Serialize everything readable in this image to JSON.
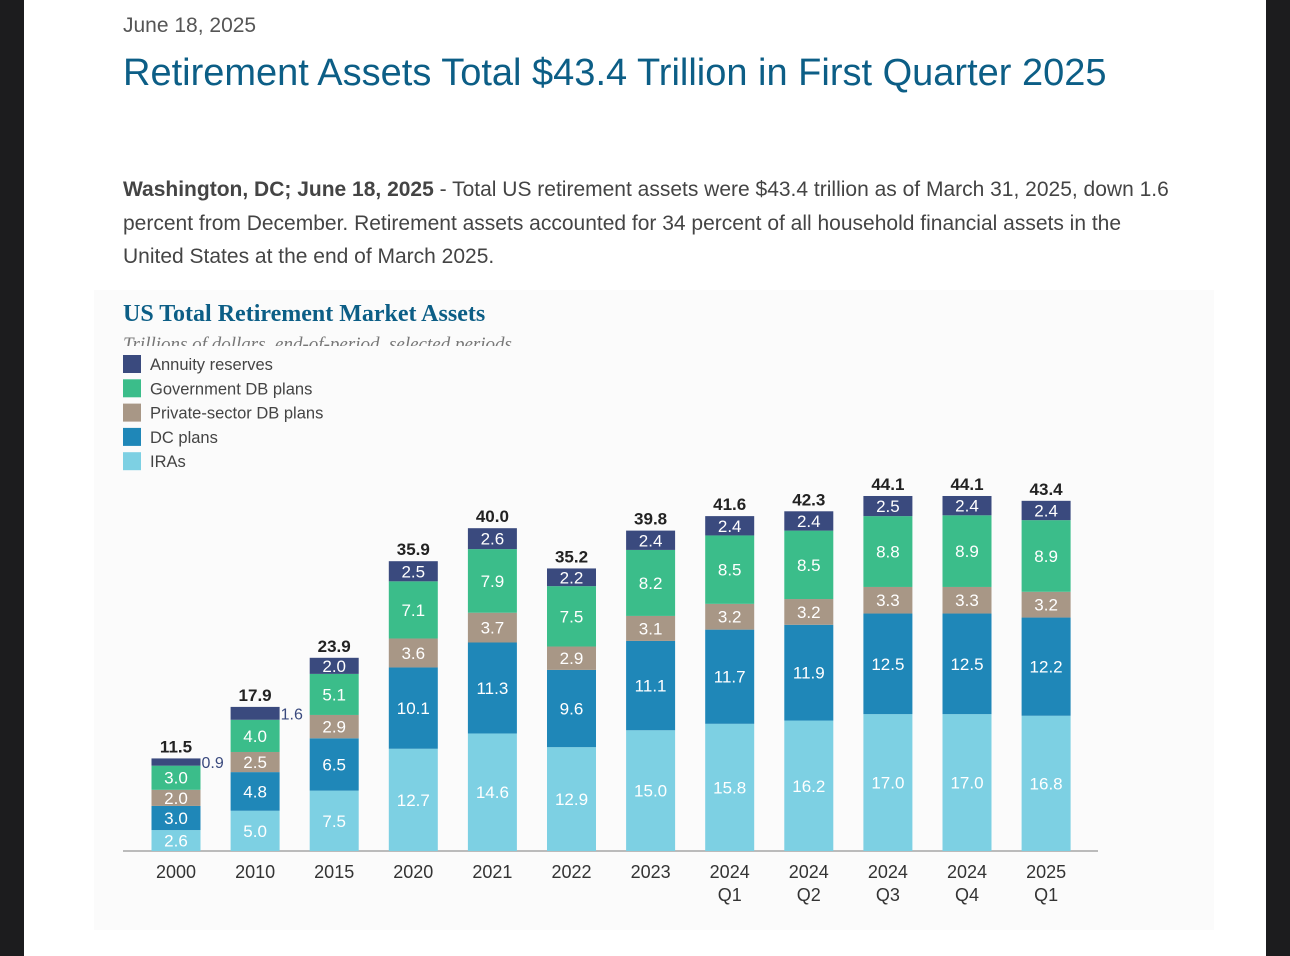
{
  "article": {
    "date": "June 18, 2025",
    "headline": "Retirement Assets Total $43.4 Trillion in First Quarter 2025",
    "dateline": "Washington, DC; June 18, 2025",
    "body": " - Total US retirement assets were $43.4 trillion as of March 31, 2025, down 1.6 percent from December. Retirement assets accounted for 34 percent of all household financial assets in the United States at the end of March 2025."
  },
  "chart_data": {
    "type": "bar",
    "stacked": true,
    "title": "US Total Retirement Market Assets",
    "subtitle": "Trillions of dollars, end-of-period, selected periods",
    "xlabel": "",
    "ylabel": "",
    "ylim": [
      0,
      45
    ],
    "grid": false,
    "legend_position": "top-left",
    "categories": [
      "2000",
      "2010",
      "2015",
      "2020",
      "2021",
      "2022",
      "2023",
      "2024 Q1",
      "2024 Q2",
      "2024 Q3",
      "2024 Q4",
      "2025 Q1"
    ],
    "totals": [
      "11.5",
      "17.9",
      "23.9",
      "35.9",
      "40.0",
      "35.2",
      "39.8",
      "41.6",
      "42.3",
      "44.1",
      "44.1",
      "43.4"
    ],
    "series": [
      {
        "name": "IRAs",
        "color": "#7dd0e3",
        "values": [
          2.6,
          5.0,
          7.5,
          12.7,
          14.6,
          12.9,
          15.0,
          15.8,
          16.2,
          17.0,
          17.0,
          16.8
        ],
        "labels": [
          "2.6",
          "5.0",
          "7.5",
          "12.7",
          "14.6",
          "12.9",
          "15.0",
          "15.8",
          "16.2",
          "17.0",
          "17.0",
          "16.8"
        ]
      },
      {
        "name": "DC plans",
        "color": "#1f87b8",
        "values": [
          3.0,
          4.8,
          6.5,
          10.1,
          11.3,
          9.6,
          11.1,
          11.7,
          11.9,
          12.5,
          12.5,
          12.2
        ],
        "labels": [
          "3.0",
          "4.8",
          "6.5",
          "10.1",
          "11.3",
          "9.6",
          "11.1",
          "11.7",
          "11.9",
          "12.5",
          "12.5",
          "12.2"
        ]
      },
      {
        "name": "Private-sector DB plans",
        "color": "#a89786",
        "values": [
          2.0,
          2.5,
          2.9,
          3.6,
          3.7,
          2.9,
          3.1,
          3.2,
          3.2,
          3.3,
          3.3,
          3.2
        ],
        "labels": [
          "2.0",
          "2.5",
          "2.9",
          "3.6",
          "3.7",
          "2.9",
          "3.1",
          "3.2",
          "3.2",
          "3.3",
          "3.3",
          "3.2"
        ]
      },
      {
        "name": "Government DB plans",
        "color": "#3bbd8a",
        "values": [
          3.0,
          4.0,
          5.1,
          7.1,
          7.9,
          7.5,
          8.2,
          8.5,
          8.5,
          8.8,
          8.9,
          8.9
        ],
        "labels": [
          "3.0",
          "4.0",
          "5.1",
          "7.1",
          "7.9",
          "7.5",
          "8.2",
          "8.5",
          "8.5",
          "8.8",
          "8.9",
          "8.9"
        ]
      },
      {
        "name": "Annuity reserves",
        "color": "#3a4a7e",
        "values": [
          0.9,
          1.6,
          2.0,
          2.5,
          2.6,
          2.2,
          2.4,
          2.4,
          2.4,
          2.5,
          2.4,
          2.4
        ],
        "labels": [
          "0.9",
          "1.6",
          "2.0",
          "2.5",
          "2.6",
          "2.2",
          "2.4",
          "2.4",
          "2.4",
          "2.5",
          "2.4",
          "2.4"
        ]
      }
    ],
    "legend_order": [
      "Annuity reserves",
      "Government DB plans",
      "Private-sector DB plans",
      "DC plans",
      "IRAs"
    ]
  }
}
